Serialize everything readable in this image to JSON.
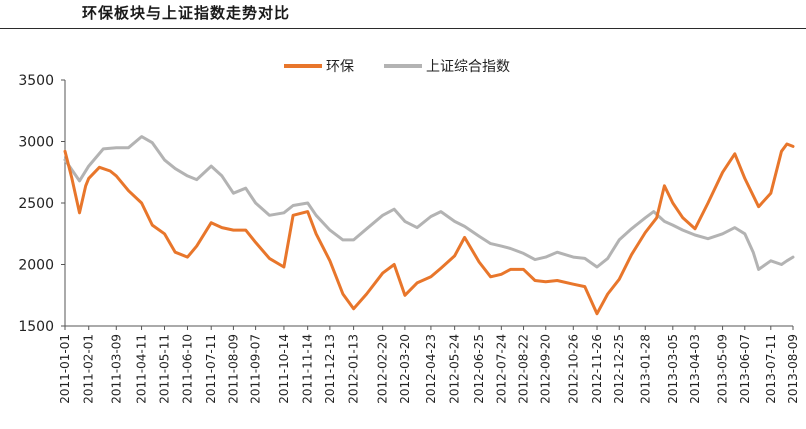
{
  "chart_data": {
    "type": "line",
    "title": "环保板块与上证指数走势对比",
    "xlabel": "",
    "ylabel": "",
    "ylim": [
      1500,
      3500
    ],
    "yticks": [
      1500,
      2000,
      2500,
      3000,
      3500
    ],
    "x_start": "2011-01-01",
    "x_end": "2013-08-09",
    "xticks": [
      "2011-01-01",
      "2011-02-01",
      "2011-03-09",
      "2011-04-11",
      "2011-05-11",
      "2011-06-10",
      "2011-07-11",
      "2011-08-09",
      "2011-09-07",
      "2011-10-14",
      "2011-11-14",
      "2011-12-13",
      "2012-01-13",
      "2012-02-20",
      "2012-03-20",
      "2012-04-23",
      "2012-05-24",
      "2012-06-25",
      "2012-07-24",
      "2012-08-22",
      "2012-09-20",
      "2012-10-26",
      "2012-11-26",
      "2012-12-25",
      "2013-01-28",
      "2013-03-05",
      "2013-04-03",
      "2013-05-09",
      "2013-06-07",
      "2013-07-11",
      "2013-08-09"
    ],
    "legend_position": "top-center",
    "grid": false,
    "series": [
      {
        "name": "环保",
        "color": "#e8762b",
        "points": [
          [
            "2011-01-01",
            2920
          ],
          [
            "2011-01-10",
            2700
          ],
          [
            "2011-01-20",
            2420
          ],
          [
            "2011-01-28",
            2640
          ],
          [
            "2011-02-01",
            2700
          ],
          [
            "2011-02-15",
            2790
          ],
          [
            "2011-03-01",
            2760
          ],
          [
            "2011-03-09",
            2720
          ],
          [
            "2011-03-25",
            2600
          ],
          [
            "2011-04-11",
            2500
          ],
          [
            "2011-04-25",
            2320
          ],
          [
            "2011-05-11",
            2250
          ],
          [
            "2011-05-25",
            2100
          ],
          [
            "2011-06-10",
            2060
          ],
          [
            "2011-06-22",
            2150
          ],
          [
            "2011-07-11",
            2340
          ],
          [
            "2011-07-25",
            2300
          ],
          [
            "2011-08-09",
            2280
          ],
          [
            "2011-08-25",
            2280
          ],
          [
            "2011-09-07",
            2180
          ],
          [
            "2011-09-25",
            2050
          ],
          [
            "2011-10-14",
            1980
          ],
          [
            "2011-10-26",
            2400
          ],
          [
            "2011-11-14",
            2430
          ],
          [
            "2011-11-25",
            2250
          ],
          [
            "2011-12-13",
            2030
          ],
          [
            "2011-12-30",
            1760
          ],
          [
            "2012-01-13",
            1640
          ],
          [
            "2012-01-30",
            1760
          ],
          [
            "2012-02-20",
            1930
          ],
          [
            "2012-03-06",
            2000
          ],
          [
            "2012-03-20",
            1750
          ],
          [
            "2012-04-05",
            1850
          ],
          [
            "2012-04-23",
            1900
          ],
          [
            "2012-05-06",
            1970
          ],
          [
            "2012-05-24",
            2070
          ],
          [
            "2012-06-06",
            2220
          ],
          [
            "2012-06-25",
            2020
          ],
          [
            "2012-07-10",
            1900
          ],
          [
            "2012-07-24",
            1920
          ],
          [
            "2012-08-05",
            1960
          ],
          [
            "2012-08-22",
            1960
          ],
          [
            "2012-09-06",
            1870
          ],
          [
            "2012-09-20",
            1860
          ],
          [
            "2012-10-05",
            1870
          ],
          [
            "2012-10-26",
            1840
          ],
          [
            "2012-11-10",
            1820
          ],
          [
            "2012-11-26",
            1600
          ],
          [
            "2012-12-10",
            1760
          ],
          [
            "2012-12-25",
            1880
          ],
          [
            "2013-01-10",
            2080
          ],
          [
            "2013-01-28",
            2260
          ],
          [
            "2013-02-12",
            2380
          ],
          [
            "2013-02-22",
            2640
          ],
          [
            "2013-03-05",
            2500
          ],
          [
            "2013-03-18",
            2380
          ],
          [
            "2013-04-03",
            2290
          ],
          [
            "2013-04-20",
            2500
          ],
          [
            "2013-05-09",
            2750
          ],
          [
            "2013-05-25",
            2900
          ],
          [
            "2013-06-07",
            2700
          ],
          [
            "2013-06-25",
            2470
          ],
          [
            "2013-07-11",
            2580
          ],
          [
            "2013-07-25",
            2920
          ],
          [
            "2013-08-01",
            2980
          ],
          [
            "2013-08-09",
            2960
          ]
        ]
      },
      {
        "name": "上证综合指数",
        "color": "#b3b3b3",
        "points": [
          [
            "2011-01-01",
            2850
          ],
          [
            "2011-01-20",
            2680
          ],
          [
            "2011-02-01",
            2800
          ],
          [
            "2011-02-20",
            2940
          ],
          [
            "2011-03-09",
            2950
          ],
          [
            "2011-03-25",
            2950
          ],
          [
            "2011-04-11",
            3040
          ],
          [
            "2011-04-25",
            2990
          ],
          [
            "2011-05-11",
            2850
          ],
          [
            "2011-05-25",
            2780
          ],
          [
            "2011-06-10",
            2720
          ],
          [
            "2011-06-22",
            2690
          ],
          [
            "2011-07-11",
            2800
          ],
          [
            "2011-07-25",
            2720
          ],
          [
            "2011-08-09",
            2580
          ],
          [
            "2011-08-25",
            2620
          ],
          [
            "2011-09-07",
            2500
          ],
          [
            "2011-09-25",
            2400
          ],
          [
            "2011-10-14",
            2420
          ],
          [
            "2011-10-26",
            2480
          ],
          [
            "2011-11-14",
            2500
          ],
          [
            "2011-11-25",
            2400
          ],
          [
            "2011-12-13",
            2280
          ],
          [
            "2011-12-30",
            2200
          ],
          [
            "2012-01-13",
            2200
          ],
          [
            "2012-01-30",
            2290
          ],
          [
            "2012-02-20",
            2400
          ],
          [
            "2012-03-06",
            2450
          ],
          [
            "2012-03-20",
            2350
          ],
          [
            "2012-04-05",
            2300
          ],
          [
            "2012-04-23",
            2390
          ],
          [
            "2012-05-06",
            2430
          ],
          [
            "2012-05-24",
            2350
          ],
          [
            "2012-06-06",
            2310
          ],
          [
            "2012-06-25",
            2230
          ],
          [
            "2012-07-10",
            2170
          ],
          [
            "2012-07-24",
            2150
          ],
          [
            "2012-08-05",
            2130
          ],
          [
            "2012-08-22",
            2090
          ],
          [
            "2012-09-06",
            2040
          ],
          [
            "2012-09-20",
            2060
          ],
          [
            "2012-10-05",
            2100
          ],
          [
            "2012-10-26",
            2060
          ],
          [
            "2012-11-10",
            2050
          ],
          [
            "2012-11-26",
            1980
          ],
          [
            "2012-12-10",
            2050
          ],
          [
            "2012-12-25",
            2200
          ],
          [
            "2013-01-10",
            2290
          ],
          [
            "2013-01-28",
            2380
          ],
          [
            "2013-02-08",
            2430
          ],
          [
            "2013-02-22",
            2350
          ],
          [
            "2013-03-05",
            2320
          ],
          [
            "2013-03-18",
            2280
          ],
          [
            "2013-04-03",
            2240
          ],
          [
            "2013-04-20",
            2210
          ],
          [
            "2013-05-09",
            2250
          ],
          [
            "2013-05-25",
            2300
          ],
          [
            "2013-06-07",
            2250
          ],
          [
            "2013-06-18",
            2100
          ],
          [
            "2013-06-25",
            1960
          ],
          [
            "2013-07-11",
            2030
          ],
          [
            "2013-07-25",
            2000
          ],
          [
            "2013-08-01",
            2030
          ],
          [
            "2013-08-09",
            2060
          ]
        ]
      }
    ]
  }
}
